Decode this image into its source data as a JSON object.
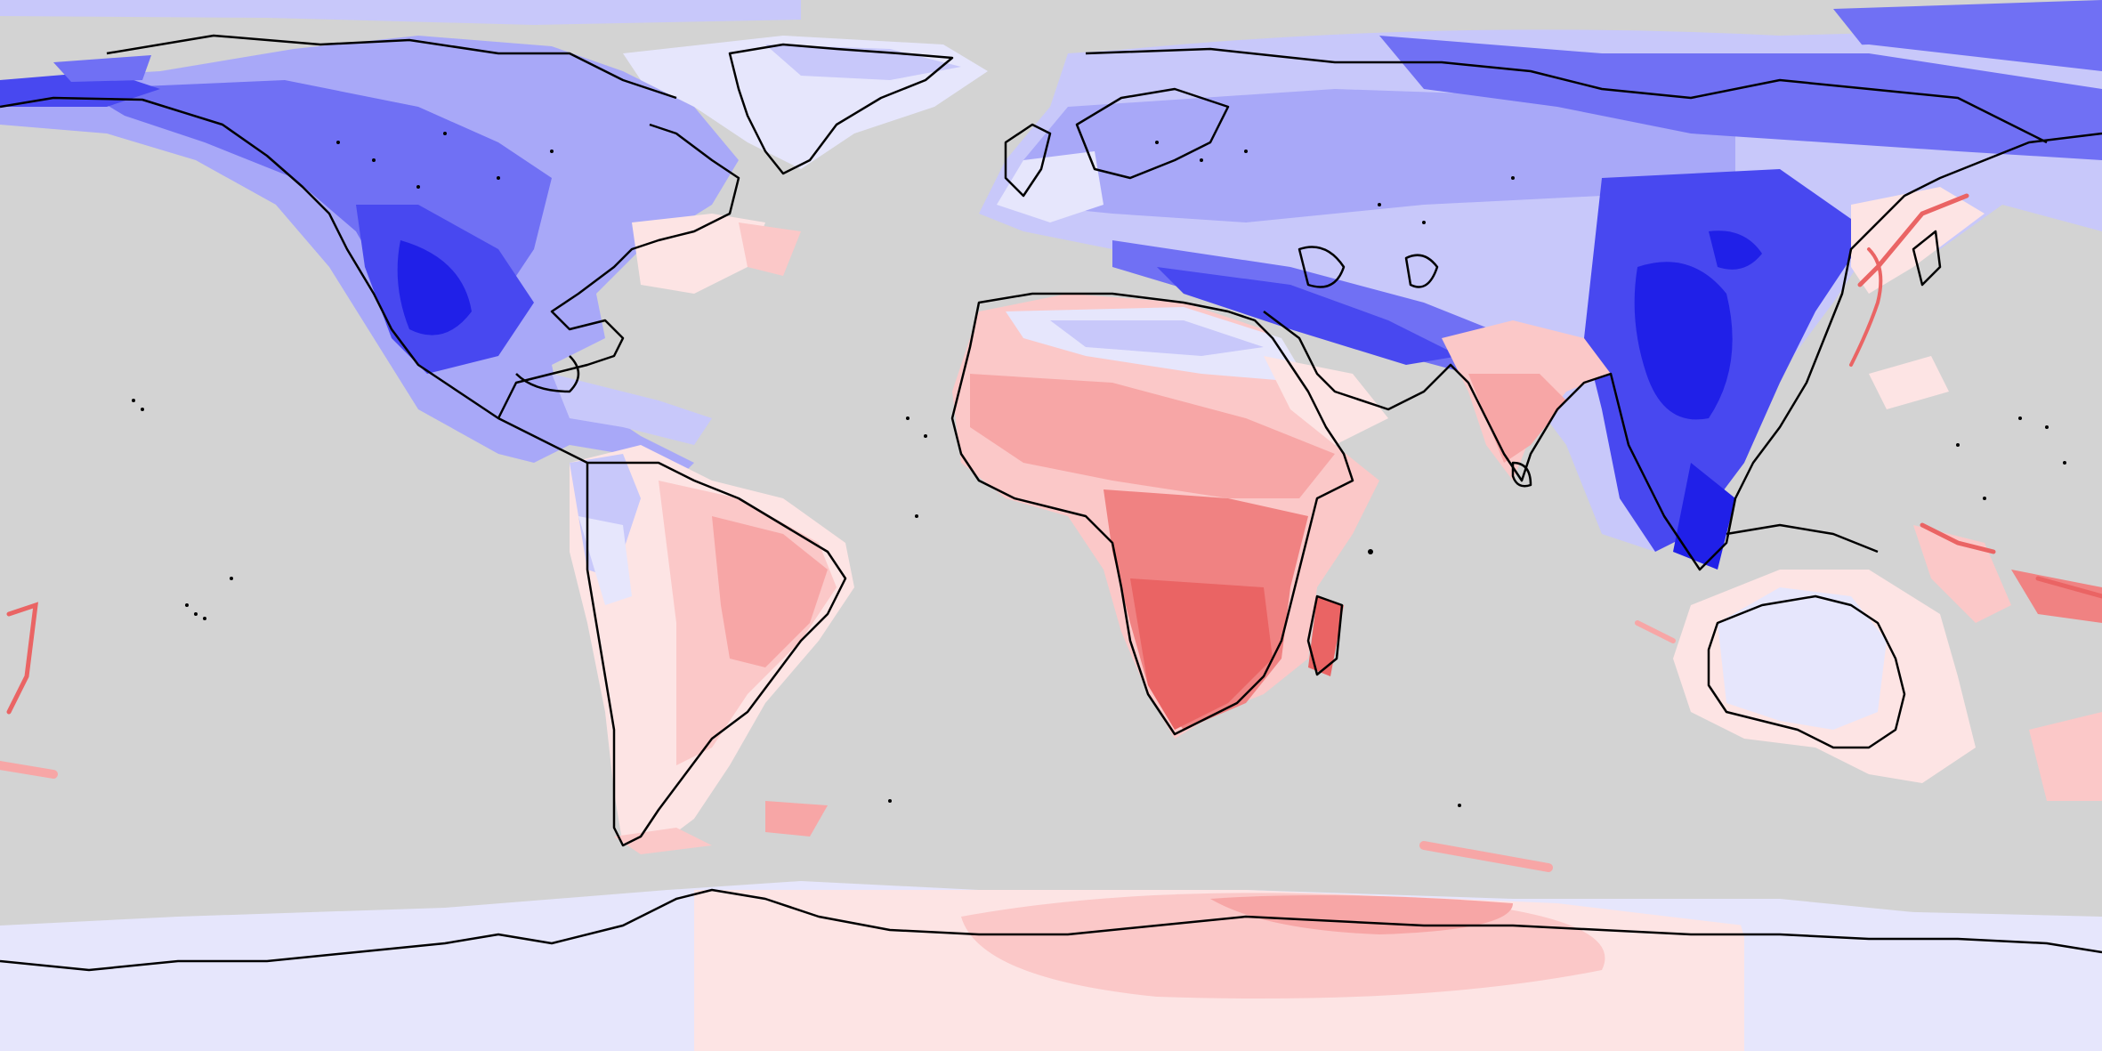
{
  "map": {
    "projection": "equirectangular",
    "ocean_color": "#d3d3d3",
    "coastline_color": "#000000",
    "colorscale": {
      "strong_blue": "#2020e8",
      "blue": "#4848f0",
      "mid_blue": "#7070f4",
      "light_blue": "#a8a8f8",
      "pale_blue": "#c8c8fa",
      "faint_blue": "#e6e6fc",
      "faint_red": "#fde4e4",
      "pale_red": "#fbc8c8",
      "light_red": "#f7a6a6",
      "red": "#f08282",
      "strong_red": "#ea6464"
    }
  }
}
